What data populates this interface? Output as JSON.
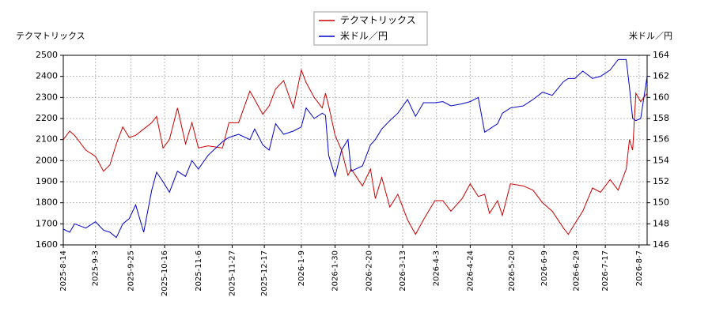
{
  "chart_data": {
    "type": "line",
    "y_label": "テクマトリックス",
    "y2_label": "米ドル／円",
    "grid": true,
    "legend": "top",
    "xlim": [
      "2025-8-14",
      "2026-8-12"
    ],
    "xticks": [
      "2025-8-14",
      "2025-9-3",
      "2025-9-25",
      "2025-10-16",
      "2025-11-6",
      "2025-11-27",
      "2025-12-17",
      "2026-1-9",
      "2026-1-30",
      "2026-2-20",
      "2026-3-13",
      "2026-4-3",
      "2026-4-24",
      "2026-5-20",
      "2026-6-9",
      "2026-6-29",
      "2026-7-17",
      "2026-8-7"
    ],
    "ylim": [
      1600,
      2500
    ],
    "yticks": [
      1600,
      1700,
      1800,
      1900,
      2000,
      2100,
      2200,
      2300,
      2400,
      2500
    ],
    "y2lim": [
      146,
      164
    ],
    "y2ticks": [
      146,
      148,
      150,
      152,
      154,
      156,
      158,
      160,
      162,
      164
    ],
    "x": [
      "2025-8-14",
      "2025-8-18",
      "2025-8-21",
      "2025-8-28",
      "2025-9-3",
      "2025-9-8",
      "2025-9-12",
      "2025-9-16",
      "2025-9-20",
      "2025-9-24",
      "2025-9-28",
      "2025-10-3",
      "2025-10-8",
      "2025-10-11",
      "2025-10-15",
      "2025-10-19",
      "2025-10-24",
      "2025-10-29",
      "2025-11-2",
      "2025-11-6",
      "2025-11-12",
      "2025-11-21",
      "2025-11-25",
      "2025-12-1",
      "2025-12-8",
      "2025-12-11",
      "2025-12-16",
      "2025-12-20",
      "2025-12-24",
      "2025-12-29",
      "2026-1-4",
      "2026-1-9",
      "2026-1-12",
      "2026-1-17",
      "2026-1-22",
      "2026-1-24",
      "2026-1-26",
      "2026-1-30",
      "2026-2-3",
      "2026-2-7",
      "2026-2-9",
      "2026-2-16",
      "2026-2-21",
      "2026-2-24",
      "2026-2-28",
      "2026-3-5",
      "2026-3-10",
      "2026-3-16",
      "2026-3-21",
      "2026-3-26",
      "2026-4-2",
      "2026-4-7",
      "2026-4-12",
      "2026-4-19",
      "2026-4-24",
      "2026-4-29",
      "2026-5-3",
      "2026-5-6",
      "2026-5-11",
      "2026-5-14",
      "2026-5-19",
      "2026-5-27",
      "2026-6-2",
      "2026-6-8",
      "2026-6-14",
      "2026-6-21",
      "2026-6-24",
      "2026-6-28",
      "2026-7-3",
      "2026-7-9",
      "2026-7-14",
      "2026-7-20",
      "2026-7-25",
      "2026-7-30",
      "2026-8-1",
      "2026-8-3",
      "2026-8-5",
      "2026-8-8",
      "2026-8-12"
    ],
    "series": [
      {
        "name": "テクマトリックス",
        "color": "#cc0000",
        "values": [
          2100,
          2140,
          2120,
          2050,
          2020,
          1950,
          1980,
          2080,
          2160,
          2110,
          2120,
          2150,
          2180,
          2210,
          2060,
          2100,
          2250,
          2080,
          2180,
          2060,
          2070,
          2060,
          2180,
          2180,
          2330,
          2290,
          2220,
          2260,
          2340,
          2380,
          2250,
          2430,
          2370,
          2300,
          2250,
          2320,
          2260,
          2120,
          2050,
          1930,
          1960,
          1880,
          1960,
          1820,
          1920,
          1780,
          1840,
          1720,
          1650,
          1720,
          1810,
          1810,
          1760,
          1820,
          1890,
          1830,
          1840,
          1750,
          1810,
          1740,
          1890,
          1880,
          1860,
          1800,
          1760,
          1680,
          1650,
          1700,
          1760,
          1870,
          1850,
          1910,
          1860,
          1960,
          2100,
          2050,
          2320,
          2280,
          2320
        ]
      },
      {
        "name": "米ドル／円",
        "color": "#0000cc",
        "axis": "y2",
        "values": [
          147.5,
          147.2,
          148.0,
          147.6,
          148.2,
          147.4,
          147.2,
          146.7,
          148.0,
          148.5,
          149.8,
          147.2,
          151.2,
          152.9,
          152.0,
          151.0,
          153.0,
          152.5,
          154.0,
          153.2,
          154.5,
          155.8,
          156.2,
          156.5,
          156.0,
          157.0,
          155.5,
          155.0,
          157.5,
          156.5,
          156.8,
          157.2,
          159.0,
          158.0,
          158.5,
          158.3,
          154.5,
          152.5,
          155.0,
          156.0,
          153.0,
          153.5,
          155.5,
          156.0,
          157.0,
          157.8,
          158.5,
          159.8,
          158.2,
          159.5,
          159.5,
          159.6,
          159.2,
          159.4,
          159.6,
          160.0,
          156.7,
          157.0,
          157.5,
          158.5,
          159.0,
          159.2,
          159.8,
          160.5,
          160.2,
          161.5,
          161.8,
          161.8,
          162.5,
          161.8,
          162.0,
          162.6,
          163.6,
          163.6,
          161.0,
          158.0,
          157.8,
          158.0,
          162.0
        ]
      }
    ]
  }
}
